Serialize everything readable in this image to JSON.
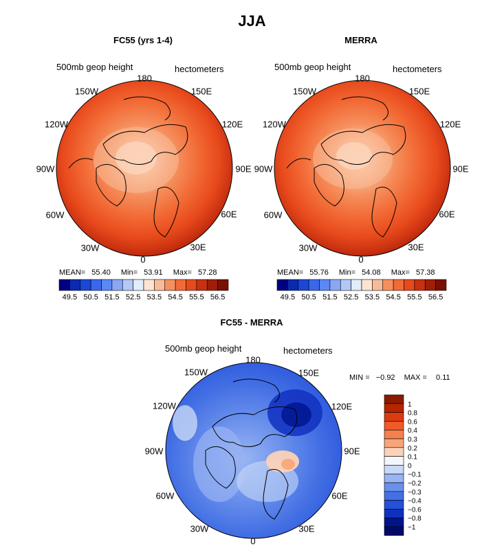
{
  "main_title": "JJA",
  "panels": [
    {
      "title": "FC55 (yrs 1-4)",
      "variable": "500mb geop height",
      "units": "hectometers",
      "stats": {
        "mean_label": "MEAN=",
        "mean": "55.40",
        "min_label": "Min=",
        "min": "53.91",
        "max_label": "Max=",
        "max": "57.28"
      }
    },
    {
      "title": "MERRA",
      "variable": "500mb geop height",
      "units": "hectometers",
      "stats": {
        "mean_label": "MEAN=",
        "mean": "55.76",
        "min_label": "Min=",
        "min": "54.08",
        "max_label": "Max=",
        "max": "57.38"
      }
    },
    {
      "title": "FC55 - MERRA",
      "variable": "500mb geop height",
      "units": "hectometers",
      "stats": {
        "min_label": "MIN =",
        "min": "−0.92",
        "max_label": "MAX =",
        "max": "0.11"
      }
    }
  ],
  "longitude_labels": {
    "top": "180",
    "tr1": "150E",
    "tr2": "120E",
    "right": "90E",
    "br2": "60E",
    "br1": "30E",
    "bottom": "0",
    "bl1": "30W",
    "bl2": "60W",
    "left": "90W",
    "tl2": "120W",
    "tl1": "150W"
  },
  "colorbar_abs": {
    "tick_labels": [
      "49.5",
      "50.5",
      "51.5",
      "52.5",
      "53.5",
      "54.5",
      "55.5",
      "56.5"
    ],
    "colors": [
      "#000080",
      "#0a2ab0",
      "#1a47d8",
      "#3a68ec",
      "#5a88f4",
      "#88a8f6",
      "#b4c8f8",
      "#e2ecfa",
      "#fde4d2",
      "#f9bb97",
      "#f5905e",
      "#f26a35",
      "#e84a1c",
      "#c83010",
      "#a01e08",
      "#7a1002"
    ]
  },
  "colorbar_diff": {
    "labels": [
      "1",
      "0.8",
      "0.6",
      "0.4",
      "0.3",
      "0.2",
      "0.1",
      "0",
      "−0.1",
      "−0.2",
      "−0.3",
      "−0.4",
      "−0.6",
      "−0.8",
      "−1"
    ],
    "colors": [
      "#8b1a00",
      "#b42600",
      "#dc3a10",
      "#f05a28",
      "#f5804e",
      "#f8a678",
      "#fbd2b8",
      "#f4f6fc",
      "#c8d8f6",
      "#98b4f2",
      "#6a90ec",
      "#4470e4",
      "#2450dc",
      "#1030c0",
      "#00148c",
      "#000a66"
    ]
  },
  "chart_data": [
    {
      "type": "heatmap",
      "title": "FC55 (yrs 1-4)",
      "projection": "north polar stereographic",
      "variable": "500mb geop height",
      "units": "hectometers",
      "mean": 55.4,
      "min": 53.91,
      "max": 57.28
    },
    {
      "type": "heatmap",
      "title": "MERRA",
      "projection": "north polar stereographic",
      "variable": "500mb geop height",
      "units": "hectometers",
      "mean": 55.76,
      "min": 54.08,
      "max": 57.38
    },
    {
      "type": "heatmap",
      "title": "FC55 - MERRA",
      "projection": "north polar stereographic",
      "variable": "500mb geop height",
      "units": "hectometers",
      "min": -0.92,
      "max": 0.11
    }
  ]
}
